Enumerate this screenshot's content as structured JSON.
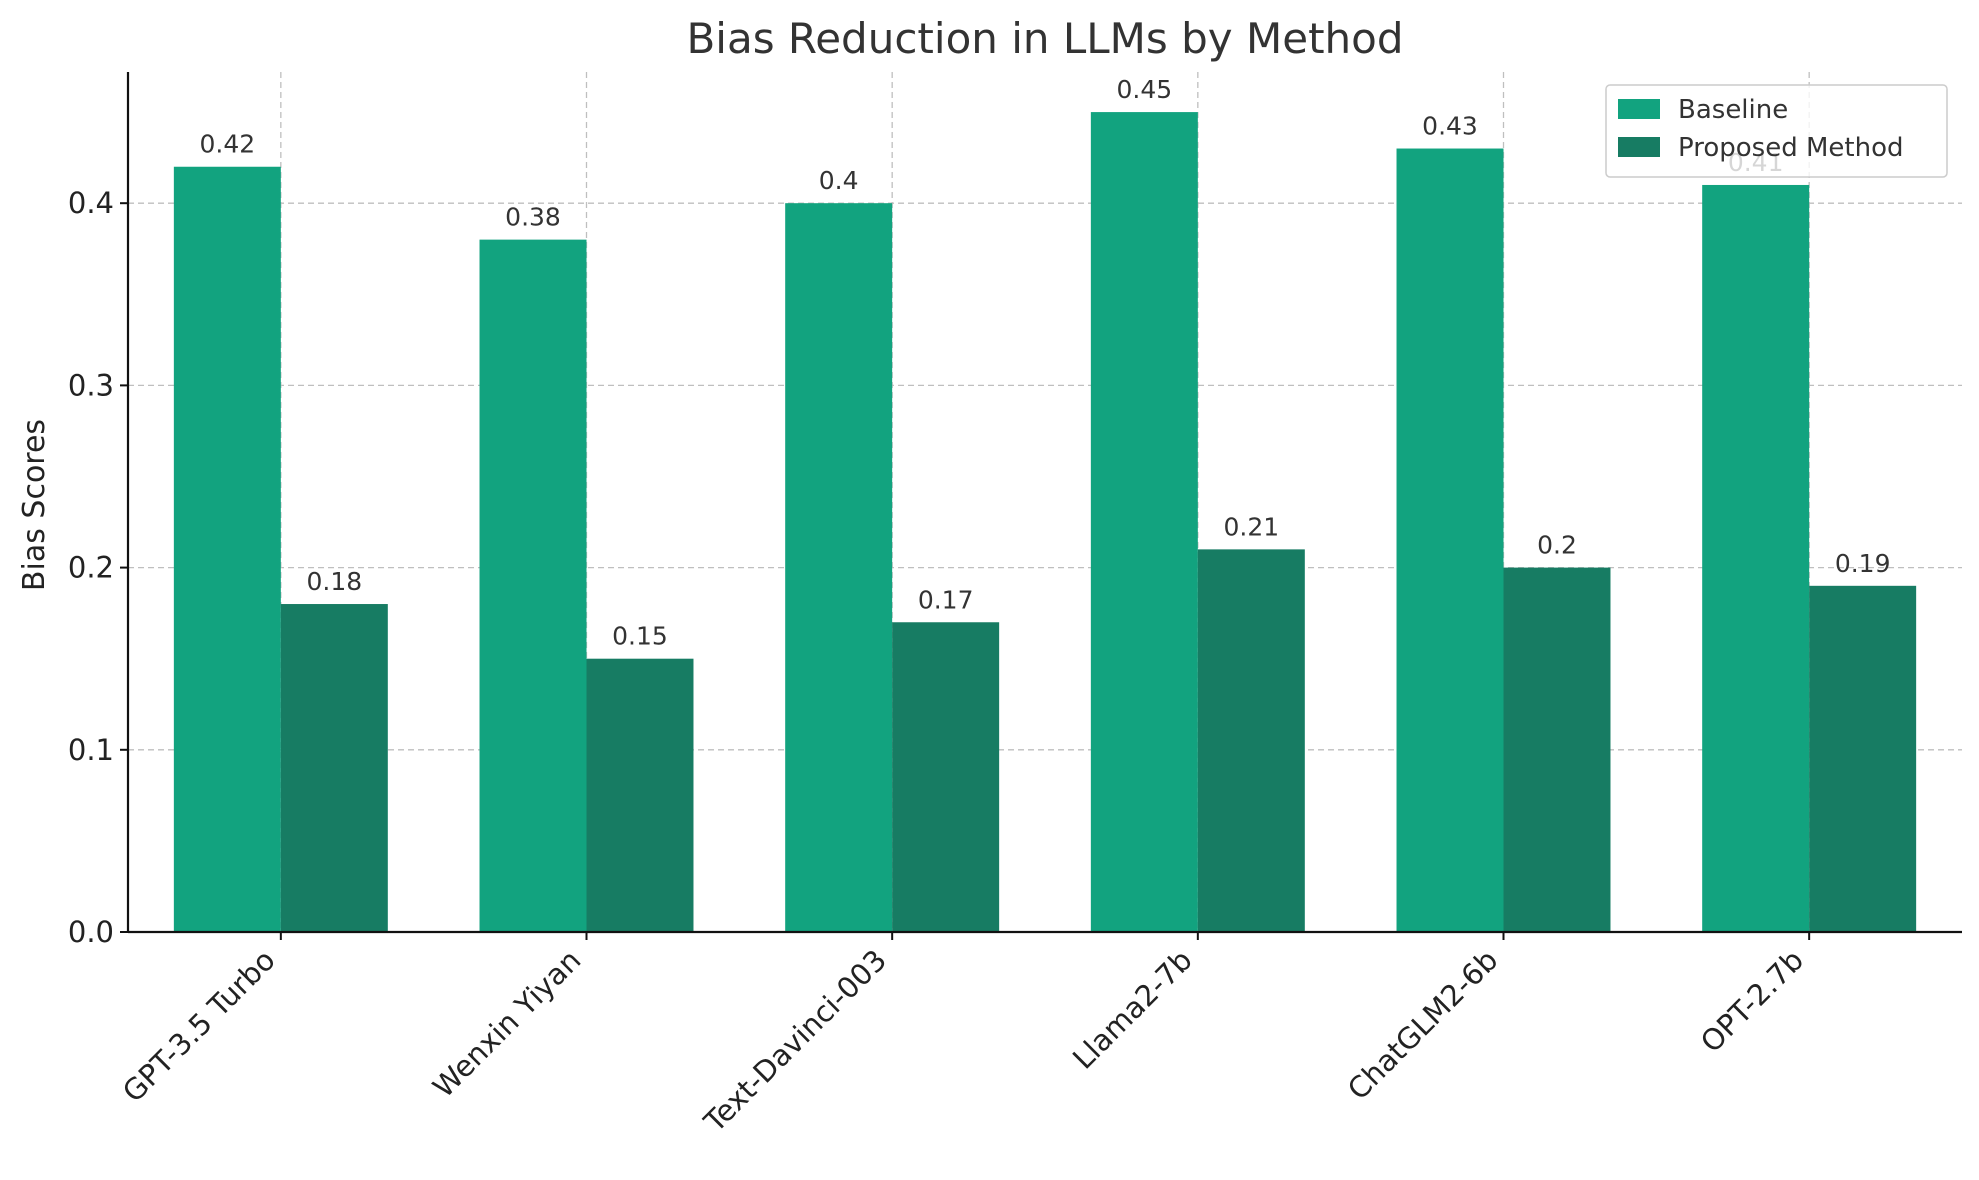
{
  "chart_data": {
    "type": "bar",
    "title": "Bias Reduction in LLMs by Method",
    "xlabel": "",
    "ylabel": "Bias Scores",
    "categories": [
      "GPT-3.5 Turbo",
      "Wenxin Yiyan",
      "Text-Davinci-003",
      "Llama2-7b",
      "ChatGLM2-6b",
      "OPT-2.7b"
    ],
    "series": [
      {
        "name": "Baseline",
        "values": [
          0.42,
          0.38,
          0.4,
          0.45,
          0.43,
          0.41
        ],
        "labels": [
          "0.42",
          "0.38",
          "0.4",
          "0.45",
          "0.43",
          "0.41"
        ],
        "color": "#12a37f"
      },
      {
        "name": "Proposed Method",
        "values": [
          0.18,
          0.15,
          0.17,
          0.21,
          0.2,
          0.19
        ],
        "labels": [
          "0.18",
          "0.15",
          "0.17",
          "0.21",
          "0.2",
          "0.19"
        ],
        "color": "#177c63"
      }
    ],
    "ylim": [
      0,
      0.472
    ],
    "yticks": [
      0.0,
      0.1,
      0.2,
      0.3,
      0.4
    ],
    "ytick_labels": [
      "0.0",
      "0.1",
      "0.2",
      "0.3",
      "0.4"
    ],
    "grid": true,
    "legend_position": "top-right"
  }
}
